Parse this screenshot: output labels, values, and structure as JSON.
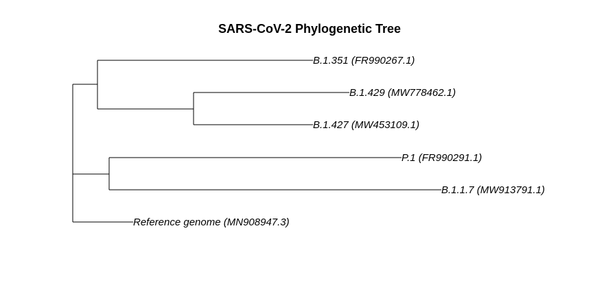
{
  "title": "SARS-CoV-2 Phylogenetic Tree",
  "tips": [
    {
      "id": "b1351",
      "label": "B.1.351  (FR990267.1)"
    },
    {
      "id": "b1429",
      "label": "B.1.429  (MW778462.1)"
    },
    {
      "id": "b1427",
      "label": "B.1.427  (MW453109.1)"
    },
    {
      "id": "p1",
      "label": "P.1  (FR990291.1)"
    },
    {
      "id": "b117",
      "label": "B.1.1.7  (MW913791.1)"
    },
    {
      "id": "ref",
      "label": "Reference genome  (MN908947.3)"
    }
  ],
  "colors": {
    "line": "#000000",
    "text": "#000000",
    "background": "#ffffff"
  }
}
